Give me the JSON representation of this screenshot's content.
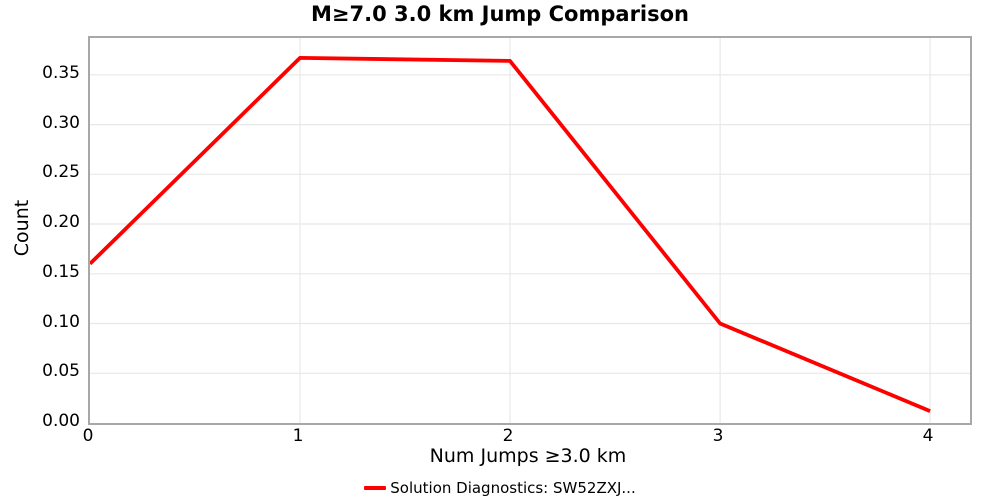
{
  "chart_data": {
    "type": "line",
    "title": "M≥7.0 3.0 km Jump Comparison",
    "xlabel": "Num Jumps ≥3.0 km",
    "ylabel": "Count",
    "x": [
      0,
      1,
      2,
      3,
      4
    ],
    "series": [
      {
        "name": "Solution Diagnostics: SW52ZXJ...",
        "color": "#ff0000",
        "values": [
          0.16,
          0.367,
          0.364,
          0.1,
          0.012
        ]
      }
    ],
    "xlim": [
      0,
      4.19
    ],
    "ylim": [
      0,
      0.387
    ],
    "x_ticks": [
      0,
      1,
      2,
      3,
      4
    ],
    "x_tick_labels": [
      "0",
      "1",
      "2",
      "3",
      "4"
    ],
    "y_ticks": [
      0,
      0.05,
      0.1,
      0.15,
      0.2,
      0.25,
      0.3,
      0.35
    ],
    "y_tick_labels": [
      "0.00",
      "0.05",
      "0.10",
      "0.15",
      "0.20",
      "0.25",
      "0.30",
      "0.35"
    ],
    "grid": true,
    "legend_position": "bottom-center",
    "colors": {
      "grid": "#e8e8e8",
      "spine": "#a8a8a8",
      "text": "#000000",
      "background": "#ffffff"
    }
  }
}
